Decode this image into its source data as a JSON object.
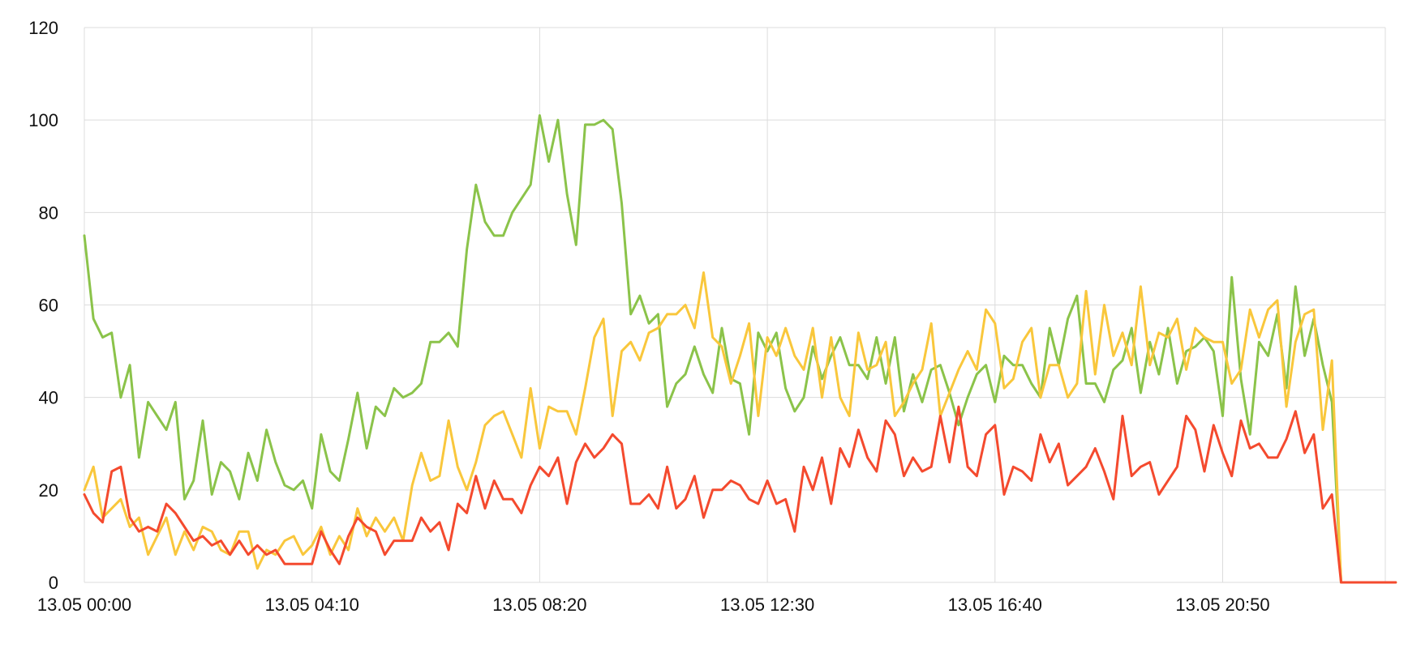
{
  "chart_data": {
    "type": "line",
    "title": "",
    "xlabel": "",
    "ylabel": "",
    "ylim": [
      0,
      120
    ],
    "y_ticks": [
      "0",
      "20",
      "40",
      "60",
      "80",
      "100",
      "120"
    ],
    "x_ticks": [
      "13.05 00:00",
      "13.05 04:10",
      "13.05 08:20",
      "13.05 12:30",
      "13.05 16:40",
      "13.05 20:50"
    ],
    "x_range_minutes": [
      0,
      1440
    ],
    "sample_interval_minutes": 10,
    "grid": true,
    "legend": "none",
    "series": [
      {
        "color": "#8bc34a",
        "values": [
          75,
          57,
          53,
          54,
          40,
          47,
          27,
          39,
          36,
          33,
          39,
          18,
          22,
          35,
          19,
          26,
          24,
          18,
          28,
          22,
          33,
          26,
          21,
          20,
          22,
          16,
          32,
          24,
          22,
          31,
          41,
          29,
          38,
          36,
          42,
          40,
          41,
          43,
          52,
          52,
          54,
          51,
          72,
          86,
          78,
          75,
          75,
          80,
          83,
          86,
          101,
          91,
          100,
          84,
          73,
          99,
          99,
          100,
          98,
          82,
          58,
          62,
          56,
          58,
          38,
          43,
          45,
          51,
          45,
          41,
          55,
          44,
          43,
          32,
          54,
          50,
          54,
          42,
          37,
          40,
          51,
          44,
          49,
          53,
          47,
          47,
          44,
          53,
          43,
          53,
          37,
          45,
          39,
          46,
          47,
          41,
          34,
          40,
          45,
          47,
          39,
          49,
          47,
          47,
          43,
          40,
          55,
          47,
          57,
          62,
          43,
          43,
          39,
          46,
          48,
          55,
          41,
          52,
          45,
          55,
          43,
          50,
          51,
          53,
          50,
          36,
          66,
          44,
          32,
          52,
          49,
          58,
          42,
          64,
          49,
          57,
          47,
          39,
          0,
          0,
          0,
          0,
          0,
          0,
          0
        ]
      },
      {
        "color": "#f9c73c",
        "values": [
          20,
          25,
          14,
          16,
          18,
          12,
          14,
          6,
          10,
          14,
          6,
          11,
          7,
          12,
          11,
          7,
          6,
          11,
          11,
          3,
          7,
          6,
          9,
          10,
          6,
          8,
          12,
          6,
          10,
          7,
          16,
          10,
          14,
          11,
          14,
          9,
          21,
          28,
          22,
          23,
          35,
          25,
          20,
          26,
          34,
          36,
          37,
          32,
          27,
          42,
          29,
          38,
          37,
          37,
          32,
          42,
          53,
          57,
          36,
          50,
          52,
          48,
          54,
          55,
          58,
          58,
          60,
          55,
          67,
          53,
          51,
          43,
          49,
          56,
          36,
          53,
          49,
          55,
          49,
          46,
          55,
          40,
          53,
          40,
          36,
          54,
          46,
          47,
          52,
          36,
          39,
          43,
          46,
          56,
          36,
          41,
          46,
          50,
          46,
          59,
          56,
          42,
          44,
          52,
          55,
          40,
          47,
          47,
          40,
          43,
          63,
          45,
          60,
          49,
          54,
          47,
          64,
          47,
          54,
          53,
          57,
          46,
          55,
          53,
          52,
          52,
          43,
          46,
          59,
          53,
          59,
          61,
          38,
          52,
          58,
          59,
          33,
          48,
          0,
          0,
          0,
          0,
          0,
          0,
          0
        ]
      },
      {
        "color": "#f44a2e",
        "values": [
          19,
          15,
          13,
          24,
          25,
          14,
          11,
          12,
          11,
          17,
          15,
          12,
          9,
          10,
          8,
          9,
          6,
          9,
          6,
          8,
          6,
          7,
          4,
          4,
          4,
          4,
          11,
          7,
          4,
          10,
          14,
          12,
          11,
          6,
          9,
          9,
          9,
          14,
          11,
          13,
          7,
          17,
          15,
          23,
          16,
          22,
          18,
          18,
          15,
          21,
          25,
          23,
          27,
          17,
          26,
          30,
          27,
          29,
          32,
          30,
          17,
          17,
          19,
          16,
          25,
          16,
          18,
          23,
          14,
          20,
          20,
          22,
          21,
          18,
          17,
          22,
          17,
          18,
          11,
          25,
          20,
          27,
          17,
          29,
          25,
          33,
          27,
          24,
          35,
          32,
          23,
          27,
          24,
          25,
          36,
          26,
          38,
          25,
          23,
          32,
          34,
          19,
          25,
          24,
          22,
          32,
          26,
          30,
          21,
          23,
          25,
          29,
          24,
          18,
          36,
          23,
          25,
          26,
          19,
          22,
          25,
          36,
          33,
          24,
          34,
          28,
          23,
          35,
          29,
          30,
          27,
          27,
          31,
          37,
          28,
          32,
          16,
          19,
          0,
          0,
          0,
          0,
          0,
          0,
          0
        ]
      }
    ]
  }
}
